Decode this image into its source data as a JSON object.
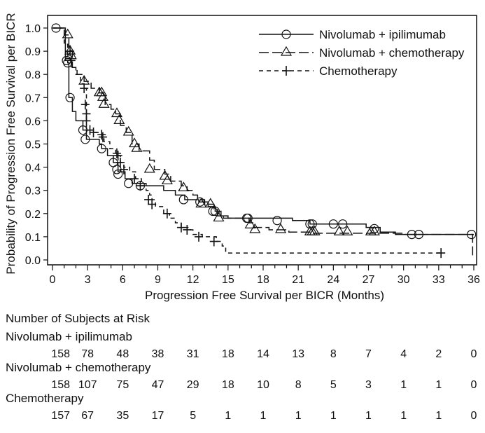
{
  "chart_data": {
    "type": "line",
    "subtype": "kaplan-meier",
    "xlabel": "Progression Free Survival per BICR (Months)",
    "ylabel": "Probability of Progression Free Survival per BICR",
    "xlim": [
      0,
      36
    ],
    "ylim": [
      0,
      1
    ],
    "xticks": [
      "0",
      "3",
      "6",
      "9",
      "12",
      "15",
      "18",
      "21",
      "24",
      "27",
      "30",
      "33",
      "36"
    ],
    "yticks": [
      "0.0",
      "0.1",
      "0.2",
      "0.3",
      "0.4",
      "0.5",
      "0.6",
      "0.7",
      "0.8",
      "0.9",
      "1.0"
    ],
    "grid": false,
    "legend_position": "top-right",
    "series": [
      {
        "name": "Nivolumab + ipilimumab",
        "line": "solid",
        "marker": "circle",
        "steps": [
          [
            0,
            1
          ],
          [
            1.1,
            0.86
          ],
          [
            1.3,
            0.85
          ],
          [
            1.4,
            0.7
          ],
          [
            1.7,
            0.64
          ],
          [
            2.0,
            0.6
          ],
          [
            2.6,
            0.56
          ],
          [
            2.9,
            0.52
          ],
          [
            4.0,
            0.5
          ],
          [
            4.2,
            0.48
          ],
          [
            4.7,
            0.45
          ],
          [
            5.2,
            0.42
          ],
          [
            5.6,
            0.38
          ],
          [
            6.2,
            0.35
          ],
          [
            6.8,
            0.33
          ],
          [
            8.0,
            0.32
          ],
          [
            9.5,
            0.3
          ],
          [
            10.5,
            0.28
          ],
          [
            11.3,
            0.26
          ],
          [
            12.5,
            0.25
          ],
          [
            13.3,
            0.23
          ],
          [
            13.9,
            0.21
          ],
          [
            14.4,
            0.19
          ],
          [
            15.0,
            0.18
          ],
          [
            20.5,
            0.17
          ],
          [
            22.0,
            0.155
          ],
          [
            26.8,
            0.14
          ],
          [
            28.0,
            0.12
          ],
          [
            29.3,
            0.11
          ],
          [
            36,
            0.11
          ]
        ],
        "censored": [
          [
            0.3,
            1.0
          ],
          [
            1.2,
            0.86
          ],
          [
            1.3,
            0.85
          ],
          [
            1.5,
            0.7
          ],
          [
            2.6,
            0.56
          ],
          [
            2.8,
            0.52
          ],
          [
            4.2,
            0.48
          ],
          [
            5.2,
            0.42
          ],
          [
            5.5,
            0.39
          ],
          [
            5.6,
            0.37
          ],
          [
            6.5,
            0.33
          ],
          [
            7.5,
            0.32
          ],
          [
            11.2,
            0.26
          ],
          [
            12.6,
            0.25
          ],
          [
            13.7,
            0.21
          ],
          [
            13.9,
            0.21
          ],
          [
            16.6,
            0.18
          ],
          [
            16.7,
            0.18
          ],
          [
            19.2,
            0.17
          ],
          [
            22.0,
            0.155
          ],
          [
            22.2,
            0.155
          ],
          [
            24.0,
            0.155
          ],
          [
            24.8,
            0.155
          ],
          [
            27.5,
            0.135
          ],
          [
            30.7,
            0.11
          ],
          [
            31.3,
            0.11
          ],
          [
            35.8,
            0.11
          ]
        ]
      },
      {
        "name": "Nivolumab + chemotherapy",
        "line": "longdash",
        "marker": "triangle",
        "steps": [
          [
            0,
            1
          ],
          [
            1.0,
            0.97
          ],
          [
            1.4,
            0.9
          ],
          [
            1.7,
            0.83
          ],
          [
            2.1,
            0.8
          ],
          [
            2.7,
            0.77
          ],
          [
            3.3,
            0.74
          ],
          [
            4.0,
            0.72
          ],
          [
            4.5,
            0.67
          ],
          [
            5.0,
            0.65
          ],
          [
            5.4,
            0.63
          ],
          [
            5.8,
            0.58
          ],
          [
            6.3,
            0.55
          ],
          [
            6.8,
            0.5
          ],
          [
            7.4,
            0.47
          ],
          [
            8.3,
            0.43
          ],
          [
            8.7,
            0.39
          ],
          [
            9.6,
            0.37
          ],
          [
            10.1,
            0.34
          ],
          [
            11.0,
            0.32
          ],
          [
            11.5,
            0.3
          ],
          [
            12.0,
            0.28
          ],
          [
            12.4,
            0.26
          ],
          [
            13.0,
            0.24
          ],
          [
            13.8,
            0.22
          ],
          [
            14.1,
            0.19
          ],
          [
            14.6,
            0.18
          ],
          [
            16.8,
            0.16
          ],
          [
            17.2,
            0.14
          ],
          [
            18.5,
            0.13
          ],
          [
            20.2,
            0.12
          ],
          [
            22.0,
            0.115
          ],
          [
            30.0,
            0.11
          ],
          [
            35.9,
            0.11
          ],
          [
            35.9,
            0.02
          ]
        ],
        "censored": [
          [
            1.3,
            0.97
          ],
          [
            1.5,
            0.9
          ],
          [
            1.6,
            0.88
          ],
          [
            2.7,
            0.77
          ],
          [
            4.0,
            0.72
          ],
          [
            4.2,
            0.72
          ],
          [
            4.3,
            0.7
          ],
          [
            4.4,
            0.67
          ],
          [
            5.5,
            0.63
          ],
          [
            5.7,
            0.6
          ],
          [
            6.5,
            0.55
          ],
          [
            7.0,
            0.5
          ],
          [
            7.2,
            0.48
          ],
          [
            8.3,
            0.39
          ],
          [
            9.6,
            0.36
          ],
          [
            9.8,
            0.34
          ],
          [
            11.2,
            0.31
          ],
          [
            12.7,
            0.24
          ],
          [
            13.5,
            0.24
          ],
          [
            14.2,
            0.18
          ],
          [
            16.9,
            0.15
          ],
          [
            17.3,
            0.13
          ],
          [
            19.5,
            0.13
          ],
          [
            22.0,
            0.12
          ],
          [
            22.2,
            0.12
          ],
          [
            22.4,
            0.12
          ],
          [
            24.5,
            0.12
          ],
          [
            25.2,
            0.12
          ],
          [
            27.2,
            0.12
          ],
          [
            27.5,
            0.12
          ]
        ]
      },
      {
        "name": "Chemotherapy",
        "line": "shortdash",
        "marker": "plus",
        "steps": [
          [
            0,
            1
          ],
          [
            1.0,
            0.93
          ],
          [
            1.3,
            0.87
          ],
          [
            1.6,
            0.83
          ],
          [
            2.0,
            0.8
          ],
          [
            2.4,
            0.76
          ],
          [
            2.7,
            0.74
          ],
          [
            2.9,
            0.56
          ],
          [
            3.5,
            0.55
          ],
          [
            4.1,
            0.54
          ],
          [
            4.4,
            0.51
          ],
          [
            4.9,
            0.48
          ],
          [
            5.4,
            0.45
          ],
          [
            5.8,
            0.42
          ],
          [
            6.1,
            0.4
          ],
          [
            6.6,
            0.38
          ],
          [
            7.1,
            0.35
          ],
          [
            7.6,
            0.32
          ],
          [
            8.0,
            0.3
          ],
          [
            8.3,
            0.28
          ],
          [
            8.5,
            0.26
          ],
          [
            8.8,
            0.23
          ],
          [
            9.5,
            0.2
          ],
          [
            10.0,
            0.18
          ],
          [
            10.5,
            0.16
          ],
          [
            11.0,
            0.14
          ],
          [
            11.7,
            0.13
          ],
          [
            12.0,
            0.11
          ],
          [
            12.8,
            0.1
          ],
          [
            14.0,
            0.08
          ],
          [
            14.5,
            0.06
          ],
          [
            14.8,
            0.03
          ],
          [
            33.3,
            0.03
          ]
        ],
        "censored": [
          [
            1.5,
            0.9
          ],
          [
            1.6,
            0.86
          ],
          [
            2.7,
            0.74
          ],
          [
            2.8,
            0.67
          ],
          [
            2.9,
            0.63
          ],
          [
            2.9,
            0.6
          ],
          [
            3.2,
            0.56
          ],
          [
            3.5,
            0.55
          ],
          [
            4.2,
            0.54
          ],
          [
            4.3,
            0.53
          ],
          [
            5.5,
            0.46
          ],
          [
            5.6,
            0.45
          ],
          [
            5.8,
            0.42
          ],
          [
            6.1,
            0.39
          ],
          [
            7.0,
            0.35
          ],
          [
            7.5,
            0.32
          ],
          [
            8.2,
            0.26
          ],
          [
            8.5,
            0.24
          ],
          [
            9.8,
            0.2
          ],
          [
            11.0,
            0.14
          ],
          [
            11.5,
            0.13
          ],
          [
            12.5,
            0.1
          ],
          [
            13.8,
            0.08
          ],
          [
            33.2,
            0.03
          ]
        ]
      }
    ],
    "risk_table": {
      "title": "Number of Subjects at Risk",
      "rows": [
        {
          "name": "Nivolumab + ipilimumab",
          "values": [
            "158",
            "78",
            "48",
            "38",
            "31",
            "18",
            "14",
            "13",
            "8",
            "7",
            "4",
            "2",
            "0"
          ]
        },
        {
          "name": "Nivolumab + chemotherapy",
          "values": [
            "158",
            "107",
            "75",
            "47",
            "29",
            "18",
            "10",
            "8",
            "5",
            "3",
            "1",
            "1",
            "0"
          ]
        },
        {
          "name": "Chemotherapy",
          "values": [
            "157",
            "67",
            "35",
            "17",
            "5",
            "1",
            "1",
            "1",
            "1",
            "1",
            "1",
            "1",
            "0"
          ]
        }
      ]
    }
  }
}
